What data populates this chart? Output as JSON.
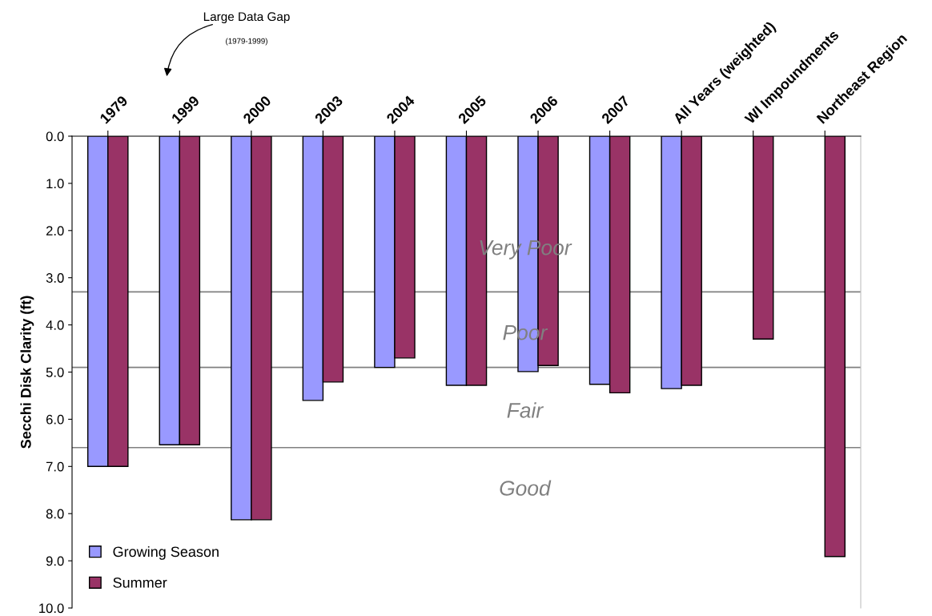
{
  "chart_data": {
    "type": "bar",
    "ylabel": "Secchi Disk Clarity (ft)",
    "categories": [
      "1979",
      "1999",
      "2000",
      "2003",
      "2004",
      "2005",
      "2006",
      "2007",
      "All Years (weighted)",
      "WI Impoundments",
      "Northeast Region"
    ],
    "series": [
      {
        "name": "Growing Season",
        "color": "#9999ff",
        "values": [
          7.0,
          6.54,
          8.13,
          5.6,
          4.9,
          5.28,
          4.99,
          5.26,
          5.35,
          null,
          null
        ]
      },
      {
        "name": "Summer",
        "color": "#993366",
        "values": [
          7.0,
          6.54,
          8.13,
          5.21,
          4.7,
          5.28,
          4.86,
          5.44,
          5.28,
          4.3,
          8.91
        ]
      }
    ],
    "ylim": [
      10,
      0
    ],
    "yticks": [
      {
        "value": 0,
        "label": "0.0"
      },
      {
        "value": 1,
        "label": "1.0"
      },
      {
        "value": 2,
        "label": "2.0"
      },
      {
        "value": 3,
        "label": "3.0"
      },
      {
        "value": 4,
        "label": "4.0"
      },
      {
        "value": 5,
        "label": "5.0"
      },
      {
        "value": 6,
        "label": "6.0"
      },
      {
        "value": 7,
        "label": "7.0"
      },
      {
        "value": 8,
        "label": "8.0"
      },
      {
        "value": 9,
        "label": "9.0"
      },
      {
        "value": 10,
        "label": "10.0"
      }
    ],
    "ref_lines": [
      {
        "axis": "y",
        "value": 3.3,
        "color": "#808080"
      },
      {
        "axis": "y",
        "value": 4.9,
        "color": "#808080"
      },
      {
        "axis": "y",
        "value": 6.6,
        "color": "#808080"
      }
    ],
    "annotations": [
      "Large Data Gap",
      "(1979-1999)",
      "Very Poor",
      "Poor",
      "Fair",
      "Good"
    ],
    "legend": "bottom left",
    "grid": false
  }
}
